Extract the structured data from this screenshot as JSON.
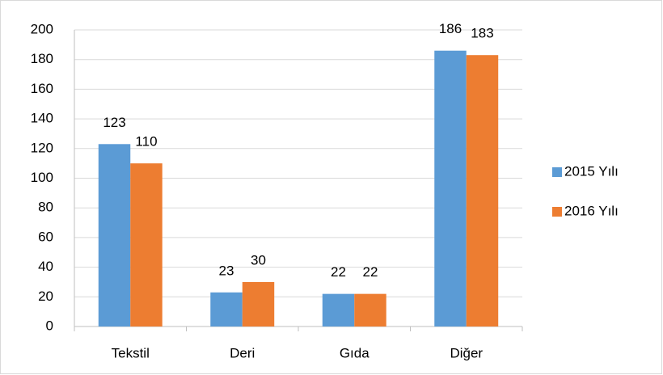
{
  "chart_data": {
    "type": "bar",
    "categories": [
      "Tekstil",
      "Deri",
      "Gıda",
      "Diğer"
    ],
    "series": [
      {
        "name": "2015 Yılı",
        "color": "#5b9bd5",
        "values": [
          123,
          23,
          22,
          186
        ]
      },
      {
        "name": "2016 Yılı",
        "color": "#ed7d31",
        "values": [
          110,
          30,
          22,
          183
        ]
      }
    ],
    "ylim": [
      0,
      200
    ],
    "yticks": [
      0,
      20,
      40,
      60,
      80,
      100,
      120,
      140,
      160,
      180,
      200
    ],
    "grid": true,
    "legend": "right"
  }
}
